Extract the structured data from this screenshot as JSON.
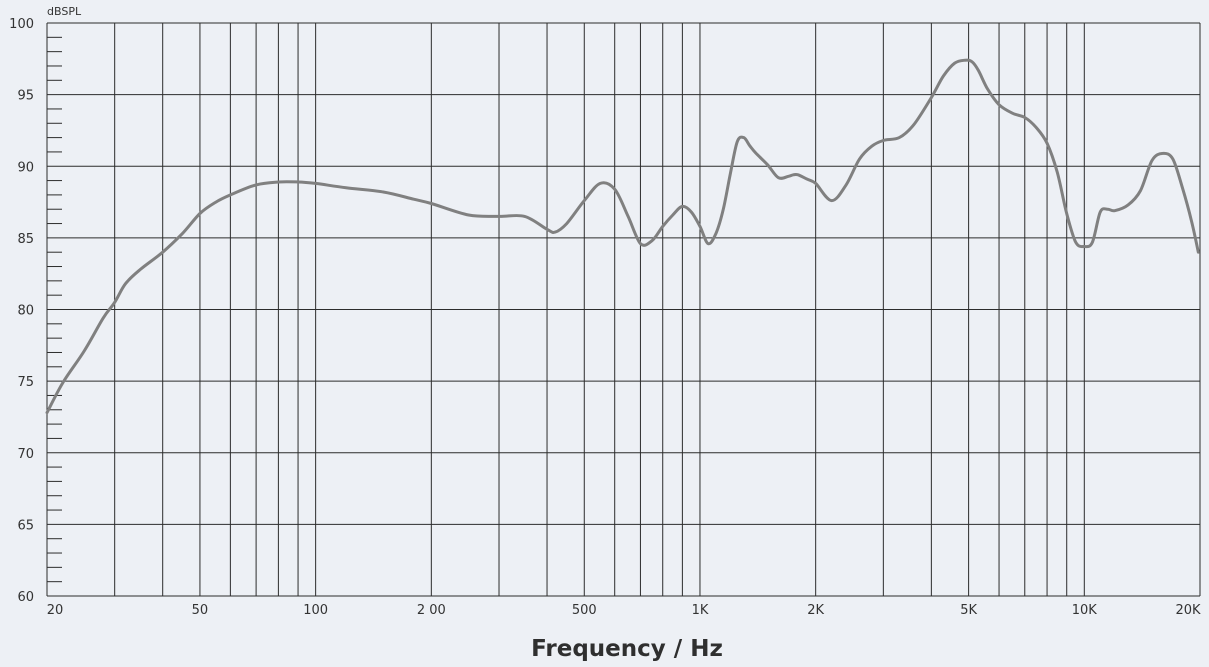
{
  "chart_data": {
    "type": "line",
    "title": "",
    "xlabel": "Frequency / Hz",
    "ylabel": "dBSPL",
    "x_scale": "log",
    "xlim": [
      20,
      20000
    ],
    "ylim": [
      60,
      100
    ],
    "y_ticks": [
      60,
      65,
      70,
      75,
      80,
      85,
      90,
      95,
      100
    ],
    "x_tick_labels": [
      {
        "value": 20,
        "label": "20"
      },
      {
        "value": 50,
        "label": "50"
      },
      {
        "value": 100,
        "label": "100"
      },
      {
        "value": 200,
        "label": "2 00"
      },
      {
        "value": 500,
        "label": "500"
      },
      {
        "value": 1000,
        "label": "1K"
      },
      {
        "value": 2000,
        "label": "2K"
      },
      {
        "value": 5000,
        "label": "5K"
      },
      {
        "value": 10000,
        "label": "10K"
      },
      {
        "value": 20000,
        "label": "20K"
      }
    ],
    "grid": true,
    "line_color": "#808080",
    "series": [
      {
        "x": [
          20,
          22,
          25,
          28,
          30,
          32,
          35,
          40,
          45,
          50,
          55,
          60,
          70,
          80,
          90,
          100,
          120,
          150,
          180,
          200,
          250,
          300,
          350,
          400,
          420,
          450,
          500,
          550,
          600,
          650,
          700,
          750,
          800,
          850,
          900,
          950,
          1000,
          1050,
          1100,
          1150,
          1200,
          1250,
          1300,
          1350,
          1400,
          1500,
          1600,
          1700,
          1750,
          1800,
          1900,
          2000,
          2200,
          2400,
          2600,
          2800,
          3000,
          3300,
          3600,
          4000,
          4300,
          4600,
          4900,
          5100,
          5300,
          5600,
          6000,
          6500,
          7000,
          7500,
          8000,
          8500,
          9000,
          9500,
          10000,
          10500,
          11000,
          11500,
          12000,
          13000,
          14000,
          15000,
          16000,
          17000,
          18000,
          19000,
          19800
        ],
        "y": [
          72.8,
          74.9,
          77.1,
          79.4,
          80.5,
          81.8,
          82.8,
          84.0,
          85.3,
          86.7,
          87.5,
          88.0,
          88.7,
          88.9,
          88.9,
          88.8,
          88.5,
          88.2,
          87.7,
          87.4,
          86.6,
          86.5,
          86.5,
          85.6,
          85.4,
          86.0,
          87.6,
          88.8,
          88.4,
          86.5,
          84.6,
          84.8,
          85.8,
          86.6,
          87.2,
          86.8,
          85.8,
          84.6,
          85.3,
          87.0,
          89.5,
          91.7,
          92.0,
          91.4,
          90.9,
          90.1,
          89.2,
          89.3,
          89.4,
          89.4,
          89.1,
          88.8,
          87.6,
          88.7,
          90.5,
          91.4,
          91.8,
          92.0,
          92.9,
          94.8,
          96.3,
          97.2,
          97.4,
          97.3,
          96.7,
          95.4,
          94.3,
          93.7,
          93.4,
          92.7,
          91.6,
          89.6,
          86.7,
          84.7,
          84.4,
          84.7,
          86.8,
          87.0,
          86.9,
          87.3,
          88.3,
          90.4,
          90.9,
          90.5,
          88.5,
          86.2,
          84.0
        ]
      }
    ]
  }
}
